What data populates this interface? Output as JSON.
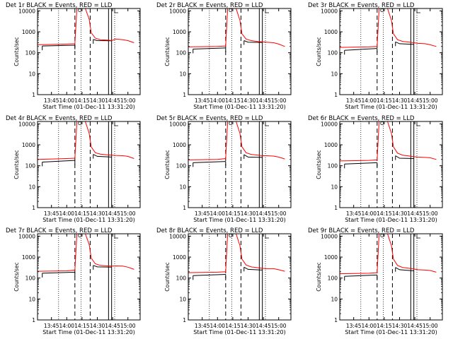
{
  "figure": {
    "background": "#ffffff",
    "events_color": "#000000",
    "lld_color": "#ff0000"
  },
  "chart_data": [
    {
      "type": "line",
      "title": "Det 1r BLACK = Events, RED = LLD",
      "xlabel": "Start Time (01-Dec-11 13:31:20)",
      "ylabel": "Counts/sec",
      "yscale": "log",
      "xlim": [
        "13:31:20",
        "15:12"
      ],
      "ylim": [
        1,
        13000
      ],
      "xticks": [
        "13:45",
        "14:00",
        "14:15",
        "14:30",
        "14:45",
        "15:00"
      ],
      "yticks": [
        1,
        10,
        100,
        1000,
        10000
      ],
      "dotted_lines": [
        "13:52",
        "14:14",
        "14:47"
      ],
      "dashed_lines": [
        "14:08",
        "14:23"
      ],
      "solid_lines": [
        "14:41",
        "14:44"
      ],
      "series": [
        {
          "name": "Events",
          "color": "#000000",
          "x": [
            "13:36",
            "14:08",
            "14:08",
            "14:23",
            "14:26",
            "14:30",
            "14:44"
          ],
          "y": [
            210,
            230,
            null,
            null,
            430,
            380,
            370
          ]
        },
        {
          "name": "LLD",
          "color": "#ff0000",
          "x": [
            "13:31",
            "14:00",
            "14:08",
            "14:10",
            "14:13",
            "14:18",
            "14:22",
            "14:24",
            "14:28",
            "14:33",
            "14:40",
            "14:44",
            "14:48",
            "14:55",
            "15:00",
            "15:06"
          ],
          "y": [
            240,
            260,
            270,
            14000,
            14000,
            14000,
            4000,
            900,
            500,
            420,
            400,
            380,
            450,
            420,
            380,
            300
          ]
        }
      ]
    },
    {
      "type": "line",
      "title": "Det 2r BLACK = Events, RED = LLD",
      "xlabel": "Start Time (01-Dec-11 13:31:20)",
      "ylabel": "Counts/sec",
      "yscale": "log",
      "xlim": [
        "13:31:20",
        "15:12"
      ],
      "ylim": [
        1,
        13000
      ],
      "xticks": [
        "13:45",
        "14:00",
        "14:15",
        "14:30",
        "14:45",
        "15:00"
      ],
      "yticks": [
        1,
        10,
        100,
        1000,
        10000
      ],
      "dotted_lines": [
        "13:52",
        "14:14",
        "14:47"
      ],
      "dashed_lines": [
        "14:08",
        "14:23"
      ],
      "solid_lines": [
        "14:41",
        "14:44"
      ],
      "series": [
        {
          "name": "Events",
          "color": "#000000",
          "x": [
            "13:36",
            "14:08",
            "14:08",
            "14:23",
            "14:26",
            "14:30",
            "14:44"
          ],
          "y": [
            150,
            170,
            null,
            null,
            380,
            320,
            310
          ]
        },
        {
          "name": "LLD",
          "color": "#ff0000",
          "x": [
            "13:31",
            "14:00",
            "14:08",
            "14:10",
            "14:13",
            "14:18",
            "14:22",
            "14:24",
            "14:28",
            "14:33",
            "14:40",
            "14:44",
            "14:48",
            "14:55",
            "15:00",
            "15:06"
          ],
          "y": [
            190,
            200,
            210,
            14000,
            14000,
            14000,
            3500,
            800,
            450,
            380,
            340,
            330,
            320,
            300,
            260,
            200
          ]
        }
      ]
    },
    {
      "type": "line",
      "title": "Det 3r BLACK = Events, RED = LLD",
      "xlabel": "Start Time (01-Dec-11 13:31:20)",
      "ylabel": "Counts/sec",
      "yscale": "log",
      "xlim": [
        "13:31:20",
        "15:12"
      ],
      "ylim": [
        1,
        13000
      ],
      "xticks": [
        "13:45",
        "14:00",
        "14:15",
        "14:30",
        "14:45",
        "15:00"
      ],
      "yticks": [
        1,
        10,
        100,
        1000,
        10000
      ],
      "dotted_lines": [
        "13:52",
        "14:14",
        "14:47"
      ],
      "dashed_lines": [
        "14:08",
        "14:23"
      ],
      "solid_lines": [
        "14:41",
        "14:44"
      ],
      "series": [
        {
          "name": "Events",
          "color": "#000000",
          "x": [
            "13:36",
            "14:08",
            "14:08",
            "14:23",
            "14:26",
            "14:30",
            "14:44"
          ],
          "y": [
            130,
            160,
            null,
            null,
            330,
            270,
            250
          ]
        },
        {
          "name": "LLD",
          "color": "#ff0000",
          "x": [
            "13:31",
            "14:00",
            "14:08",
            "14:10",
            "14:13",
            "14:18",
            "14:22",
            "14:24",
            "14:28",
            "14:33",
            "14:40",
            "14:44",
            "14:48",
            "14:55",
            "15:00",
            "15:06"
          ],
          "y": [
            180,
            190,
            200,
            14000,
            14000,
            14000,
            3500,
            800,
            420,
            350,
            320,
            300,
            280,
            270,
            240,
            200
          ]
        }
      ]
    },
    {
      "type": "line",
      "title": "Det 4r BLACK = Events, RED = LLD",
      "xlabel": "Start Time (01-Dec-11 13:31:20)",
      "ylabel": "Counts/sec",
      "yscale": "log",
      "xlim": [
        "13:31:20",
        "15:12"
      ],
      "ylim": [
        1,
        13000
      ],
      "xticks": [
        "13:45",
        "14:00",
        "14:15",
        "14:30",
        "14:45",
        "15:00"
      ],
      "yticks": [
        1,
        10,
        100,
        1000,
        10000
      ],
      "dotted_lines": [
        "13:52",
        "14:14",
        "14:47"
      ],
      "dashed_lines": [
        "14:08",
        "14:23"
      ],
      "solid_lines": [
        "14:41",
        "14:44"
      ],
      "series": [
        {
          "name": "Events",
          "color": "#000000",
          "x": [
            "13:36",
            "14:08",
            "14:08",
            "14:23",
            "14:26",
            "14:30",
            "14:44"
          ],
          "y": [
            150,
            180,
            null,
            null,
            350,
            280,
            260
          ]
        },
        {
          "name": "LLD",
          "color": "#ff0000",
          "x": [
            "13:31",
            "14:00",
            "14:08",
            "14:10",
            "14:13",
            "14:18",
            "14:22",
            "14:24",
            "14:28",
            "14:33",
            "14:40",
            "14:44",
            "14:48",
            "14:55",
            "15:00",
            "15:06"
          ],
          "y": [
            200,
            220,
            230,
            14000,
            14000,
            14000,
            3500,
            800,
            420,
            360,
            330,
            320,
            310,
            300,
            280,
            220
          ]
        }
      ]
    },
    {
      "type": "line",
      "title": "Det 5r BLACK = Events, RED = LLD",
      "xlabel": "Start Time (01-Dec-11 13:31:20)",
      "ylabel": "Counts/sec",
      "yscale": "log",
      "xlim": [
        "13:31:20",
        "15:12"
      ],
      "ylim": [
        1,
        13000
      ],
      "xticks": [
        "13:45",
        "14:00",
        "14:15",
        "14:30",
        "14:45",
        "15:00"
      ],
      "yticks": [
        1,
        10,
        100,
        1000,
        10000
      ],
      "dotted_lines": [
        "13:52",
        "14:14",
        "14:47"
      ],
      "dashed_lines": [
        "14:08",
        "14:23"
      ],
      "solid_lines": [
        "14:41",
        "14:44"
      ],
      "series": [
        {
          "name": "Events",
          "color": "#000000",
          "x": [
            "13:36",
            "14:08",
            "14:08",
            "14:23",
            "14:26",
            "14:30",
            "14:44"
          ],
          "y": [
            140,
            160,
            null,
            null,
            340,
            260,
            250
          ]
        },
        {
          "name": "LLD",
          "color": "#ff0000",
          "x": [
            "13:31",
            "14:00",
            "14:08",
            "14:10",
            "14:13",
            "14:18",
            "14:22",
            "14:24",
            "14:28",
            "14:33",
            "14:40",
            "14:44",
            "14:48",
            "14:55",
            "15:00",
            "15:06"
          ],
          "y": [
            190,
            200,
            220,
            14000,
            14000,
            14000,
            3500,
            800,
            420,
            350,
            320,
            300,
            300,
            290,
            260,
            210
          ]
        }
      ]
    },
    {
      "type": "line",
      "title": "Det 6r BLACK = Events, RED = LLD",
      "xlabel": "Start Time (01-Dec-11 13:31:20)",
      "ylabel": "Counts/sec",
      "yscale": "log",
      "xlim": [
        "13:31:20",
        "15:12"
      ],
      "ylim": [
        1,
        13000
      ],
      "xticks": [
        "13:45",
        "14:00",
        "14:15",
        "14:30",
        "14:45",
        "15:00"
      ],
      "yticks": [
        1,
        10,
        100,
        1000,
        10000
      ],
      "dotted_lines": [
        "13:52",
        "14:14",
        "14:47"
      ],
      "dashed_lines": [
        "14:08",
        "14:23"
      ],
      "solid_lines": [
        "14:41",
        "14:44"
      ],
      "series": [
        {
          "name": "Events",
          "color": "#000000",
          "x": [
            "13:36",
            "14:08",
            "14:08",
            "14:23",
            "14:26",
            "14:30",
            "14:44"
          ],
          "y": [
            120,
            140,
            null,
            null,
            300,
            230,
            220
          ]
        },
        {
          "name": "LLD",
          "color": "#ff0000",
          "x": [
            "13:31",
            "14:00",
            "14:08",
            "14:10",
            "14:13",
            "14:18",
            "14:22",
            "14:24",
            "14:28",
            "14:33",
            "14:40",
            "14:44",
            "14:48",
            "14:55",
            "15:00",
            "15:06"
          ],
          "y": [
            170,
            180,
            190,
            14000,
            14000,
            14000,
            3500,
            800,
            400,
            320,
            290,
            270,
            260,
            250,
            240,
            200
          ]
        }
      ]
    },
    {
      "type": "line",
      "title": "Det 7r BLACK = Events, RED = LLD",
      "xlabel": "Start Time (01-Dec-11 13:31:20)",
      "ylabel": "Counts/sec",
      "yscale": "log",
      "xlim": [
        "13:31:20",
        "15:12"
      ],
      "ylim": [
        1,
        13000
      ],
      "xticks": [
        "13:45",
        "14:00",
        "14:15",
        "14:30",
        "14:45",
        "15:00"
      ],
      "yticks": [
        1,
        10,
        100,
        1000,
        10000
      ],
      "dotted_lines": [
        "13:52",
        "14:14",
        "14:47"
      ],
      "dashed_lines": [
        "14:08",
        "14:23"
      ],
      "solid_lines": [
        "14:41",
        "14:44"
      ],
      "series": [
        {
          "name": "Events",
          "color": "#000000",
          "x": [
            "13:36",
            "14:08",
            "14:08",
            "14:23",
            "14:26",
            "14:30",
            "14:44"
          ],
          "y": [
            170,
            190,
            null,
            null,
            400,
            340,
            330
          ]
        },
        {
          "name": "LLD",
          "color": "#ff0000",
          "x": [
            "13:31",
            "14:00",
            "14:08",
            "14:10",
            "14:13",
            "14:18",
            "14:22",
            "14:24",
            "14:28",
            "14:33",
            "14:40",
            "14:44",
            "14:48",
            "14:55",
            "15:00",
            "15:06"
          ],
          "y": [
            210,
            220,
            240,
            14000,
            14000,
            14000,
            4000,
            900,
            480,
            400,
            380,
            370,
            380,
            370,
            330,
            260
          ]
        }
      ]
    },
    {
      "type": "line",
      "title": "Det 8r BLACK = Events, RED = LLD",
      "xlabel": "Start Time (01-Dec-11 13:31:20)",
      "ylabel": "Counts/sec",
      "yscale": "log",
      "xlim": [
        "13:31:20",
        "15:12"
      ],
      "ylim": [
        1,
        13000
      ],
      "xticks": [
        "13:45",
        "14:00",
        "14:15",
        "14:30",
        "14:45",
        "15:00"
      ],
      "yticks": [
        1,
        10,
        100,
        1000,
        10000
      ],
      "dotted_lines": [
        "13:52",
        "14:14",
        "14:47"
      ],
      "dashed_lines": [
        "14:08",
        "14:23"
      ],
      "solid_lines": [
        "14:41",
        "14:44"
      ],
      "series": [
        {
          "name": "Events",
          "color": "#000000",
          "x": [
            "13:36",
            "14:08",
            "14:08",
            "14:23",
            "14:26",
            "14:30",
            "14:44"
          ],
          "y": [
            130,
            150,
            null,
            null,
            330,
            260,
            240
          ]
        },
        {
          "name": "LLD",
          "color": "#ff0000",
          "x": [
            "13:31",
            "14:00",
            "14:08",
            "14:10",
            "14:13",
            "14:18",
            "14:22",
            "14:24",
            "14:28",
            "14:33",
            "14:40",
            "14:44",
            "14:48",
            "14:55",
            "15:00",
            "15:06"
          ],
          "y": [
            180,
            190,
            200,
            14000,
            14000,
            14000,
            3500,
            800,
            420,
            340,
            310,
            290,
            280,
            280,
            250,
            210
          ]
        }
      ]
    },
    {
      "type": "line",
      "title": "Det 9r BLACK = Events, RED = LLD",
      "xlabel": "Start Time (01-Dec-11 13:31:20)",
      "ylabel": "Counts/sec",
      "yscale": "log",
      "xlim": [
        "13:31:20",
        "15:12"
      ],
      "ylim": [
        1,
        13000
      ],
      "xticks": [
        "13:45",
        "14:00",
        "14:15",
        "14:30",
        "14:45",
        "15:00"
      ],
      "yticks": [
        1,
        10,
        100,
        1000,
        10000
      ],
      "dotted_lines": [
        "13:52",
        "14:14",
        "14:47"
      ],
      "dashed_lines": [
        "14:08",
        "14:23"
      ],
      "solid_lines": [
        "14:41",
        "14:44"
      ],
      "series": [
        {
          "name": "Events",
          "color": "#000000",
          "x": [
            "13:36",
            "14:08",
            "14:08",
            "14:23",
            "14:26",
            "14:30",
            "14:44"
          ],
          "y": [
            120,
            140,
            null,
            null,
            320,
            250,
            220
          ]
        },
        {
          "name": "LLD",
          "color": "#ff0000",
          "x": [
            "13:31",
            "14:00",
            "14:08",
            "14:10",
            "14:13",
            "14:18",
            "14:22",
            "14:24",
            "14:28",
            "14:33",
            "14:40",
            "14:44",
            "14:48",
            "14:55",
            "15:00",
            "15:06"
          ],
          "y": [
            160,
            170,
            180,
            14000,
            14000,
            14000,
            3500,
            800,
            400,
            320,
            290,
            270,
            250,
            240,
            230,
            190
          ]
        }
      ]
    }
  ]
}
